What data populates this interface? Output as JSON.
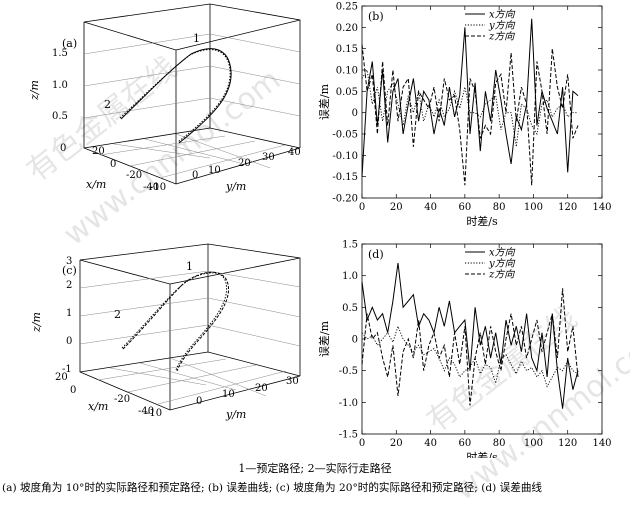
{
  "figure": {
    "legend_line": "1—预定路径; 2—实际行走路径",
    "caption": "(a) 坡度角为 10°时的实际路径和预定路径; (b) 误差曲线; (c) 坡度角为 20°时的实际路径和预定路径; (d) 误差曲线",
    "watermarks": [
      "有色金属在线",
      "www.cnnmol.com",
      "有色金属在线",
      "www.cnnmol.com"
    ]
  },
  "chart_data": [
    {
      "type": "line3d",
      "panel": "(a)",
      "zlabel": "z/m",
      "xlabel": "x/m",
      "ylabel": "y/m",
      "z_ticks": [
        "0",
        "0.5",
        "1.0",
        "1.5"
      ],
      "x_ticks": [
        "20",
        "0",
        "-20",
        "-40"
      ],
      "y_ticks": [
        "-10",
        "0",
        "10",
        "20",
        "30",
        "40"
      ],
      "curve_labels": [
        "1",
        "2"
      ]
    },
    {
      "type": "line",
      "panel": "(b)",
      "xlabel": "时差/s",
      "ylabel": "误差/m",
      "xlim": [
        0,
        140
      ],
      "ylim": [
        -0.2,
        0.25
      ],
      "x_ticks": [
        0,
        20,
        40,
        60,
        80,
        100,
        120,
        140
      ],
      "y_ticks": [
        "-0.20",
        "-0.15",
        "-0.10",
        "-0.05",
        "0",
        "0.05",
        "0.10",
        "0.15",
        "0.20",
        "0.25"
      ],
      "series": [
        {
          "name": "x方向",
          "style": "solid",
          "x": [
            0,
            3,
            6,
            9,
            12,
            15,
            18,
            21,
            24,
            27,
            30,
            33,
            36,
            39,
            42,
            45,
            48,
            51,
            54,
            57,
            60,
            63,
            66,
            69,
            72,
            75,
            78,
            81,
            84,
            87,
            90,
            93,
            96,
            99,
            102,
            105,
            108,
            111,
            114,
            117,
            120,
            123,
            126
          ],
          "y": [
            -0.15,
            0.05,
            0.12,
            -0.03,
            0.1,
            -0.07,
            0.05,
            0.08,
            -0.05,
            0.02,
            0.08,
            -0.02,
            0.05,
            0.03,
            -0.05,
            0.01,
            -0.03,
            0.06,
            -0.01,
            0.04,
            0.2,
            -0.05,
            0.07,
            -0.09,
            0.05,
            -0.02,
            0.1,
            0.03,
            -0.05,
            -0.12,
            -0.01,
            -0.04,
            0.02,
            0.22,
            -0.03,
            0.05,
            0.01,
            -0.02,
            -0.05,
            0.06,
            -0.14,
            0.05,
            0.04
          ]
        },
        {
          "name": "y方向",
          "style": "dotted",
          "x": [
            0,
            3,
            6,
            9,
            12,
            15,
            18,
            21,
            24,
            27,
            30,
            33,
            36,
            39,
            42,
            45,
            48,
            51,
            54,
            57,
            60,
            63,
            66,
            69,
            72,
            75,
            78,
            81,
            84,
            87,
            90,
            93,
            96,
            99,
            102,
            105,
            108,
            111,
            114,
            117,
            120,
            123,
            126
          ],
          "y": [
            0.08,
            0.1,
            0.02,
            0.06,
            -0.02,
            0.05,
            0.07,
            0.02,
            -0.03,
            0.04,
            0,
            0.05,
            -0.02,
            0.02,
            -0.01,
            0.03,
            -0.01,
            0.01,
            0.05,
            0.01,
            0.06,
            0,
            0,
            -0.01,
            0.02,
            0.03,
            0.04,
            -0.04,
            0,
            0,
            -0.08,
            0.02,
            0.01,
            -0.03,
            -0.05,
            0.02,
            0.03,
            -0.01,
            0.01,
            0.02,
            -0.01,
            0,
            0
          ]
        },
        {
          "name": "z方向",
          "style": "dashed",
          "x": [
            0,
            3,
            6,
            9,
            12,
            15,
            18,
            21,
            24,
            27,
            30,
            33,
            36,
            39,
            42,
            45,
            48,
            51,
            54,
            57,
            60,
            63,
            66,
            69,
            72,
            75,
            78,
            81,
            84,
            87,
            90,
            93,
            96,
            99,
            102,
            105,
            108,
            111,
            114,
            117,
            120,
            123,
            126
          ],
          "y": [
            0.16,
            0.05,
            0.09,
            -0.05,
            0.12,
            -0.03,
            0.1,
            -0.02,
            0.06,
            0.08,
            -0.08,
            0.05,
            0.03,
            0.01,
            0.06,
            -0.02,
            0.08,
            0.03,
            0.04,
            -0.04,
            -0.17,
            0.08,
            0.05,
            -0.06,
            -0.03,
            -0.05,
            0.07,
            0.09,
            0,
            0.14,
            -0.02,
            0.06,
            0.02,
            -0.17,
            0.12,
            0.05,
            -0.05,
            0.15,
            0.06,
            0.01,
            0.09,
            -0.06,
            -0.03
          ]
        }
      ]
    },
    {
      "type": "line3d",
      "panel": "(c)",
      "zlabel": "z/m",
      "xlabel": "x/m",
      "ylabel": "y/m",
      "z_ticks": [
        "-1",
        "0",
        "1",
        "2",
        "3"
      ],
      "x_ticks": [
        "20",
        "0",
        "-20",
        "-40"
      ],
      "y_ticks": [
        "-10",
        "0",
        "10",
        "20",
        "30"
      ],
      "curve_labels": [
        "1",
        "2"
      ]
    },
    {
      "type": "line",
      "panel": "(d)",
      "xlabel": "时差/s",
      "ylabel": "误差/m",
      "xlim": [
        0,
        140
      ],
      "ylim": [
        -1.5,
        1.5
      ],
      "x_ticks": [
        0,
        20,
        40,
        60,
        80,
        100,
        120,
        140
      ],
      "y_ticks": [
        "-1.5",
        "-1.0",
        "-0.5",
        "0",
        "0.5",
        "1.0",
        "1.5"
      ],
      "series": [
        {
          "name": "x方向",
          "style": "solid",
          "x": [
            0,
            3,
            6,
            9,
            12,
            15,
            18,
            21,
            24,
            27,
            30,
            33,
            36,
            39,
            42,
            45,
            48,
            51,
            54,
            57,
            60,
            63,
            66,
            69,
            72,
            75,
            78,
            81,
            84,
            87,
            90,
            93,
            96,
            99,
            102,
            105,
            108,
            111,
            114,
            117,
            120,
            123,
            126
          ],
          "y": [
            0.9,
            0.3,
            0.5,
            0.3,
            0.4,
            0.1,
            0.6,
            1.2,
            0.5,
            0.6,
            0.7,
            0.2,
            0.4,
            0.3,
            0.1,
            0.5,
            0.2,
            0.6,
            0.1,
            0.2,
            0.3,
            -0.5,
            0.5,
            -0.1,
            0.2,
            -0.3,
            0.1,
            -0.4,
            0.3,
            -0.1,
            0.2,
            -0.2,
            0.4,
            -0.3,
            -0.5,
            0.1,
            -0.6,
            0.4,
            -0.5,
            -1.1,
            -0.3,
            -0.8,
            -0.5
          ]
        },
        {
          "name": "y方向",
          "style": "dotted",
          "x": [
            0,
            3,
            6,
            9,
            12,
            15,
            18,
            21,
            24,
            27,
            30,
            33,
            36,
            39,
            42,
            45,
            48,
            51,
            54,
            57,
            60,
            63,
            66,
            69,
            72,
            75,
            78,
            81,
            84,
            87,
            90,
            93,
            96,
            99,
            102,
            105,
            108,
            111,
            114,
            117,
            120,
            123,
            126
          ],
          "y": [
            0.1,
            0,
            0.05,
            -0.1,
            0,
            0.1,
            -0.05,
            0.2,
            0,
            -0.1,
            -0.2,
            -0.1,
            -0.25,
            -0.2,
            -0.15,
            -0.3,
            -0.5,
            -0.3,
            -0.4,
            -0.6,
            -0.5,
            -0.45,
            -0.3,
            -0.55,
            -0.4,
            -0.45,
            -0.7,
            -0.3,
            -0.25,
            -0.4,
            -0.55,
            -0.35,
            -0.5,
            -0.45,
            -0.6,
            -0.5,
            -0.75,
            -0.6,
            -0.45,
            -0.5,
            -0.35,
            -0.5,
            -0.55
          ]
        },
        {
          "name": "z方向",
          "style": "dashed",
          "x": [
            0,
            3,
            6,
            9,
            12,
            15,
            18,
            21,
            24,
            27,
            30,
            33,
            36,
            39,
            42,
            45,
            48,
            51,
            54,
            57,
            60,
            63,
            66,
            69,
            72,
            75,
            78,
            81,
            84,
            87,
            90,
            93,
            96,
            99,
            102,
            105,
            108,
            111,
            114,
            117,
            120,
            123,
            126
          ],
          "y": [
            -0.4,
            0.4,
            0,
            0.1,
            -0.3,
            -0.6,
            -0.1,
            -0.9,
            -0.2,
            0,
            -0.3,
            0.3,
            -0.5,
            -0.1,
            0.1,
            -0.3,
            -0.1,
            -0.6,
            0.1,
            -0.4,
            0.2,
            -1.05,
            -0.3,
            0.1,
            -0.4,
            0.2,
            -0.2,
            -0.5,
            0,
            0.4,
            -0.1,
            0.2,
            -0.3,
            0,
            0.3,
            -0.2,
            0.1,
            0.4,
            -0.3,
            0.8,
            -0.2,
            0.2,
            -0.6
          ]
        }
      ]
    }
  ]
}
